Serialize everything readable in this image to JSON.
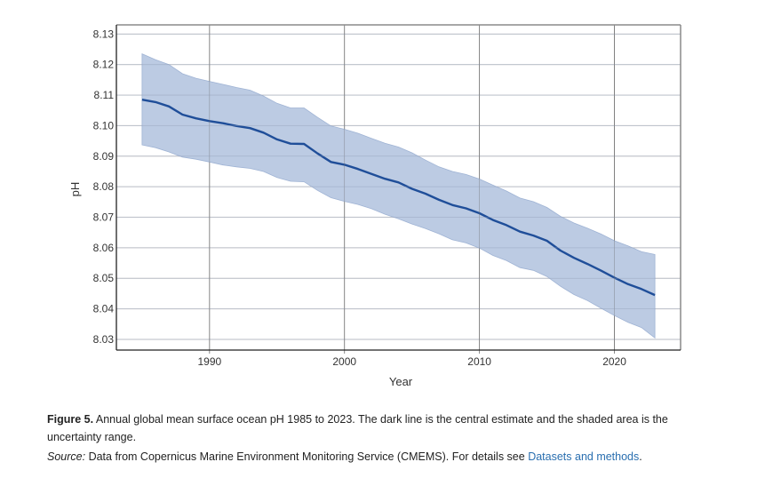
{
  "chart_data": {
    "type": "line",
    "title": "",
    "xlabel": "Year",
    "ylabel": "pH",
    "xlim": [
      1983.1,
      2024.9
    ],
    "ylim": [
      8.0265,
      8.133
    ],
    "x_ticks": [
      1990,
      2000,
      2010,
      2020
    ],
    "y_ticks": [
      8.03,
      8.04,
      8.05,
      8.06,
      8.07,
      8.08,
      8.09,
      8.1,
      8.11,
      8.12,
      8.13
    ],
    "y_tick_labels": [
      "8.03",
      "8.04",
      "8.05",
      "8.06",
      "8.07",
      "8.08",
      "8.09",
      "8.10",
      "8.11",
      "8.12",
      "8.13"
    ],
    "x_tick_labels": [
      "1990",
      "2000",
      "2010",
      "2020"
    ],
    "grid": true,
    "legend": "none",
    "colors": {
      "line": "#1f4e99",
      "band": "#b8c8e1",
      "band_edge": "#9fb3d4",
      "grid": "#d9d9d9",
      "vgrid": "#6e6e6e"
    },
    "x": [
      1985,
      1986,
      1987,
      1988,
      1989,
      1990,
      1991,
      1992,
      1993,
      1994,
      1995,
      1996,
      1997,
      1998,
      1999,
      2000,
      2001,
      2002,
      2003,
      2004,
      2005,
      2006,
      2007,
      2008,
      2009,
      2010,
      2011,
      2012,
      2013,
      2014,
      2015,
      2016,
      2017,
      2018,
      2019,
      2020,
      2021,
      2022,
      2023
    ],
    "series": [
      {
        "name": "Central estimate",
        "values": [
          8.1085,
          8.1077,
          8.1063,
          8.1036,
          8.1024,
          8.1015,
          8.1008,
          8.0999,
          8.0992,
          8.0977,
          8.0955,
          8.0941,
          8.094,
          8.0909,
          8.0881,
          8.0872,
          8.0858,
          8.0842,
          8.0826,
          8.0814,
          8.0793,
          8.0777,
          8.0757,
          8.074,
          8.0729,
          8.0713,
          8.0691,
          8.0674,
          8.0653,
          8.064,
          8.0623,
          8.0591,
          8.0567,
          8.0547,
          8.0525,
          8.0502,
          8.0481,
          8.0465,
          8.0445
        ]
      },
      {
        "name": "Uncertainty upper",
        "values": [
          8.1235,
          8.1216,
          8.12,
          8.117,
          8.1155,
          8.1145,
          8.1135,
          8.1125,
          8.1116,
          8.1097,
          8.1073,
          8.1058,
          8.1058,
          8.1027,
          8.0999,
          8.0988,
          8.0975,
          8.0958,
          8.0942,
          8.093,
          8.0911,
          8.0887,
          8.0865,
          8.085,
          8.084,
          8.0825,
          8.0805,
          8.0786,
          8.0763,
          8.0751,
          8.0732,
          8.0703,
          8.0681,
          8.0664,
          8.0645,
          8.0623,
          8.0606,
          8.0587,
          8.0578
        ]
      },
      {
        "name": "Uncertainty lower",
        "values": [
          8.0937,
          8.0928,
          8.0914,
          8.0897,
          8.089,
          8.0881,
          8.0871,
          8.0865,
          8.086,
          8.085,
          8.083,
          8.0818,
          8.0816,
          8.0788,
          8.0764,
          8.0752,
          8.0742,
          8.0728,
          8.071,
          8.0695,
          8.0678,
          8.0663,
          8.0646,
          8.0626,
          8.0616,
          8.0599,
          8.0575,
          8.0558,
          8.0535,
          8.0526,
          8.0506,
          8.0474,
          8.0447,
          8.0427,
          8.0402,
          8.0378,
          8.0356,
          8.0339,
          8.0305
        ]
      }
    ]
  },
  "caption": {
    "figure_label": "Figure 5.",
    "text": " Annual global mean surface ocean pH 1985 to 2023. The dark line is the central estimate and the shaded area is the uncertainty range.",
    "source_label": "Source:",
    "source_text": " Data from Copernicus Marine Environment Monitoring Service (CMEMS). For details see ",
    "source_link": "Datasets and methods",
    "source_end": "."
  }
}
